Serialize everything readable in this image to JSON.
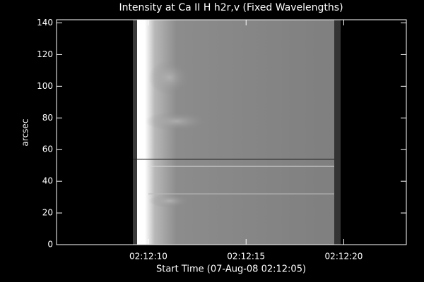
{
  "chart_data": {
    "type": "image",
    "title": "Intensity at Ca II H h2r,v (Fixed Wavelengths)",
    "xlabel": "Start Time (07-Aug-08 02:12:05)",
    "ylabel": "arcsec",
    "xlim": [
      0.3,
      18.2
    ],
    "xticks": [
      {
        "value": 5,
        "label": "02:12:10"
      },
      {
        "value": 10,
        "label": "02:12:15"
      },
      {
        "value": 15,
        "label": "02:12:20"
      }
    ],
    "ylim": [
      0,
      142
    ],
    "yticks": [
      0,
      20,
      40,
      60,
      80,
      100,
      120,
      140
    ]
  }
}
